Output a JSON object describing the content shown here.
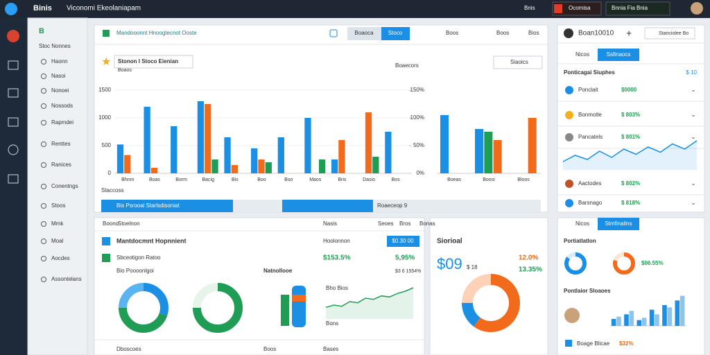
{
  "header": {
    "brand": "Binis",
    "title": "Viconomi Ekeolaniapam",
    "actions": [
      "Bnis",
      "Ocomisa",
      "Bnnia Fia Bnia"
    ]
  },
  "sidebar": {
    "top": "B",
    "section": "Stoc Nonnes",
    "items": [
      "Haonn",
      "Nasoi",
      "Nonoei",
      "Nossods",
      "Rapmdei",
      "Renttes",
      "Ranices",
      "Conentngs",
      "Stoos",
      "Mmk",
      "Moal",
      "Aocdes",
      "Assontelans"
    ]
  },
  "main_card": {
    "toolbar": {
      "label": "Mandooonnt Hnoogtecnot Ooste",
      "buttons": [
        "Boaoca",
        "Stoco"
      ],
      "links": [
        "Boos",
        "Boos",
        "Bios"
      ]
    },
    "title": "Stonon I Stoco Eienian",
    "subtitle": "Boaos",
    "legend": "Boaecors",
    "box": "Siaoics",
    "footer": "Staccoss",
    "progress": [
      "Bis Psrooal Starlsdisoniat",
      "Roaeceop 9"
    ]
  },
  "right_card": {
    "user": "Boan10010",
    "button": "Stanciolee Bo",
    "tabs": [
      "Nicos",
      "Ssfinaocs"
    ],
    "heading": "Ponticagai Siuphes",
    "heading_value": "$ 10",
    "rows": [
      {
        "label": "Ponclait",
        "value": "$0000"
      },
      {
        "label": "Bonmotle",
        "value": "$ 803%"
      },
      {
        "label": "Pancatels",
        "value": "$ 801%"
      },
      {
        "label": "Aactodes",
        "value": "$ 802%"
      },
      {
        "label": "Barsnago",
        "value": "$ 818%"
      }
    ]
  },
  "bottom_left": {
    "tabs": [
      "Boono",
      "Stoelnon",
      "Nasis",
      "Seoes",
      "Bros",
      "Bonas"
    ],
    "title": "Mantdocmnt Hopnnient",
    "button": "$0.30 00",
    "col": "Hoolonnon",
    "row1": {
      "label": "Sbceotigon Ratoo",
      "value": "$153.5%",
      "value2": "5,95%"
    },
    "row2": {
      "label": "Bio Poooonlgoi",
      "mid": "Natnollooe",
      "value": "$3 6 1554%"
    },
    "legend": [
      "Bho Bios",
      "Bons"
    ],
    "footer": [
      "Dboscoes",
      "Boos",
      "Bases"
    ]
  },
  "bottom_mid": {
    "title": "Siorioal",
    "big": "$09",
    "big_sub": "$ 18",
    "pct1": "12.0%",
    "pct2": "13.35%"
  },
  "bottom_right": {
    "tabs": [
      "Nicos",
      "Stmfinalins"
    ],
    "title": "Portiatlatlon",
    "value": "$06.55%",
    "subtitle": "Pontlaior Sloaoes",
    "footer": "Boage Blicae",
    "footer_value": "$32%"
  },
  "chart_data": [
    {
      "type": "bar",
      "categories": [
        "Bhnm",
        "Boas",
        "Borm",
        "Bacig",
        "Bis",
        "Boo",
        "Bso",
        "Maos",
        "Bris",
        "Dasio",
        "Bos"
      ],
      "series": [
        {
          "color": "#1a8fe3",
          "values": [
            520,
            1200,
            850,
            1300,
            650,
            450,
            650,
            1000,
            250,
            0,
            750
          ]
        },
        {
          "color": "#f26b1d",
          "values": [
            330,
            100,
            0,
            1250,
            150,
            250,
            0,
            0,
            600,
            1100,
            0
          ]
        },
        {
          "color": "#1f9d55",
          "values": [
            0,
            0,
            0,
            250,
            0,
            200,
            0,
            250,
            0,
            300,
            0
          ]
        }
      ],
      "ylim": [
        0,
        1500
      ],
      "yticks": [
        0,
        500,
        1000,
        1500
      ],
      "y2lim": [
        0,
        150
      ],
      "y2ticks": [
        {
          "value": 0,
          "label": "0%"
        },
        {
          "value": 50,
          "label": "50%"
        },
        {
          "value": 100,
          "label": "100%"
        },
        {
          "value": 150,
          "label": "150%"
        }
      ]
    },
    {
      "type": "bar",
      "categories": [
        "Boeas",
        "Boosi",
        "Bloos"
      ],
      "series": [
        {
          "color": "#1a8fe3",
          "values": [
            1050,
            800,
            0
          ]
        },
        {
          "color": "#1f9d55",
          "values": [
            0,
            750,
            0
          ]
        },
        {
          "color": "#f26b1d",
          "values": [
            0,
            600,
            1000
          ]
        }
      ],
      "ylim": [
        0,
        1500
      ]
    },
    {
      "type": "pie",
      "values": [
        30,
        45,
        25
      ],
      "colors": [
        "#1a8fe3",
        "#1f9d55",
        "#5ab4f0"
      ]
    },
    {
      "type": "pie",
      "values": [
        75,
        25
      ],
      "colors": [
        "#1f9d55",
        "#e6f4ea"
      ]
    },
    {
      "type": "line",
      "values": [
        10,
        12,
        11,
        15,
        14,
        18,
        17,
        20,
        19,
        22,
        24,
        27
      ],
      "ylim": [
        0,
        30
      ],
      "color": "#1f9d55"
    },
    {
      "type": "pie",
      "values": [
        60,
        15,
        25
      ],
      "colors": [
        "#f26b1d",
        "#1a8fe3",
        "#ffd2b8"
      ]
    },
    {
      "type": "line",
      "values": [
        8,
        14,
        10,
        18,
        12,
        20,
        15,
        22,
        17,
        25,
        20,
        28
      ],
      "ylim": [
        0,
        30
      ],
      "color": "#1a8fe3"
    },
    {
      "type": "pie",
      "values": [
        85,
        15
      ],
      "colors": [
        "#1a8fe3",
        "#dbeaf7"
      ]
    },
    {
      "type": "pie",
      "values": [
        80,
        20
      ],
      "colors": [
        "#f26b1d",
        "#ffe3d3"
      ]
    },
    {
      "type": "bar",
      "categories": [
        null,
        null,
        null,
        null,
        null,
        null
      ],
      "series": [
        {
          "color": "#1a8fe3",
          "values": [
            300,
            500,
            250,
            700,
            900,
            1100
          ]
        },
        {
          "color": "#8cc4ec",
          "values": [
            400,
            650,
            350,
            500,
            800,
            1300
          ]
        }
      ],
      "ylim": [
        0,
        1500
      ]
    }
  ]
}
